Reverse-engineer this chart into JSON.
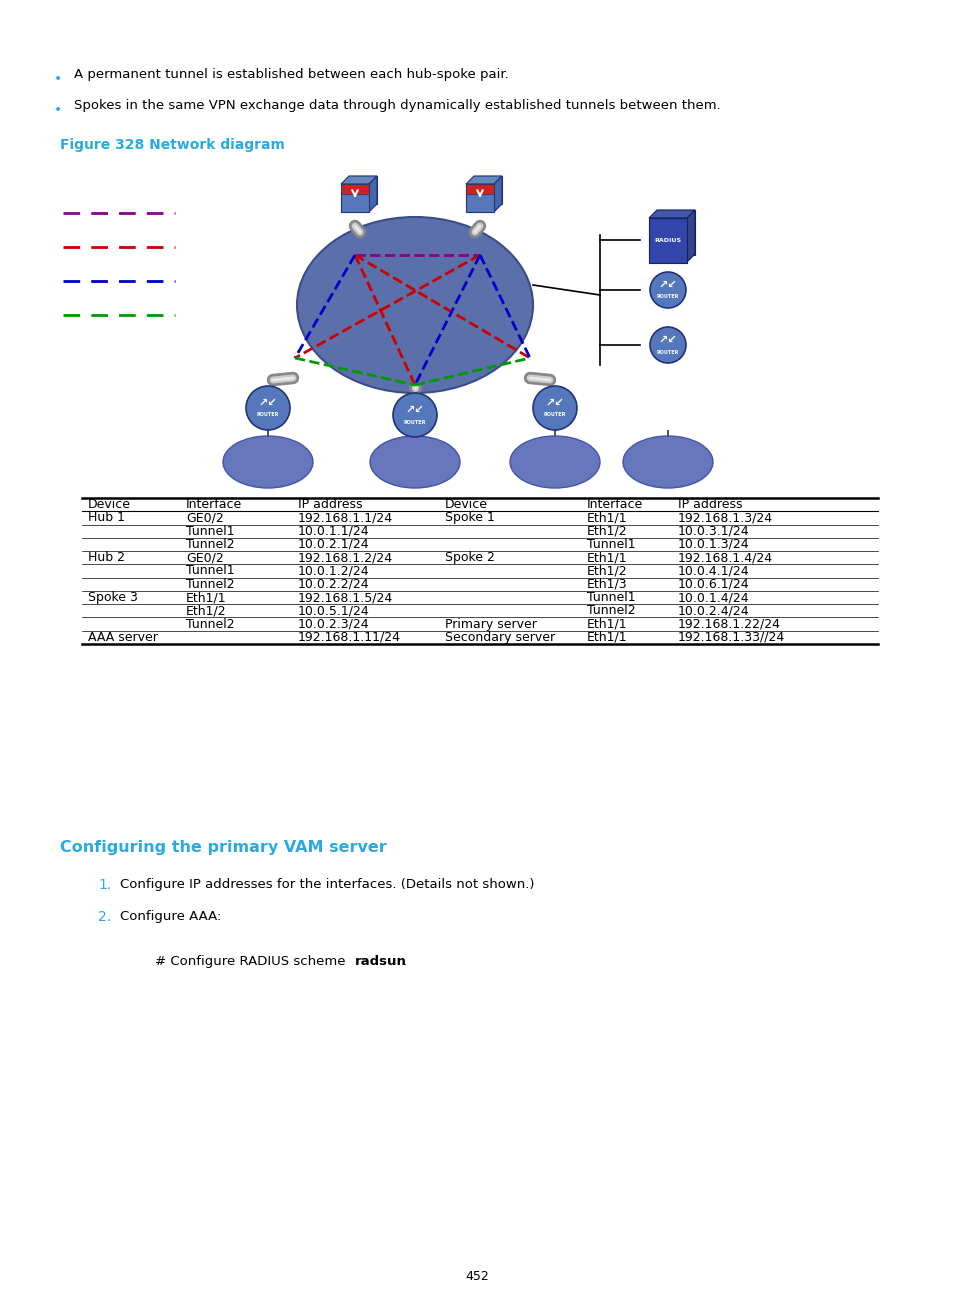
{
  "bg_color": "#ffffff",
  "bullet_color": "#29ABE2",
  "heading_color": "#29ABE2",
  "text_color": "#000000",
  "bullet1": "A permanent tunnel is established between each hub-spoke pair.",
  "bullet2": "Spokes in the same VPN exchange data through dynamically established tunnels between them.",
  "figure_label": "Figure 328 Network diagram",
  "section_title": "Configuring the primary VAM server",
  "step1": "Configure IP addresses for the interfaces. (Details not shown.)",
  "step2": "Configure AAA:",
  "step2_detail": "# Configure RADIUS scheme ",
  "step2_bold": "radsun",
  "step2_end": ".",
  "page_number": "452",
  "legend_colors": [
    "#880088",
    "#CC0000",
    "#0000CC",
    "#009900"
  ],
  "table_header": [
    "Device",
    "Interface",
    "IP address",
    "Device",
    "Interface",
    "IP address"
  ],
  "table_rows": [
    [
      "Hub 1",
      "GE0/2",
      "192.168.1.1/24",
      "Spoke 1",
      "Eth1/1",
      "192.168.1.3/24"
    ],
    [
      "",
      "Tunnel1",
      "10.0.1.1/24",
      "",
      "Eth1/2",
      "10.0.3.1/24"
    ],
    [
      "",
      "Tunnel2",
      "10.0.2.1/24",
      "",
      "Tunnel1",
      "10.0.1.3/24"
    ],
    [
      "Hub 2",
      "GE0/2",
      "192.168.1.2/24",
      "Spoke 2",
      "Eth1/1",
      "192.168.1.4/24"
    ],
    [
      "",
      "Tunnel1",
      "10.0.1.2/24",
      "",
      "Eth1/2",
      "10.0.4.1/24"
    ],
    [
      "",
      "Tunnel2",
      "10.0.2.2/24",
      "",
      "Eth1/3",
      "10.0.6.1/24"
    ],
    [
      "Spoke 3",
      "Eth1/1",
      "192.168.1.5/24",
      "",
      "Tunnel1",
      "10.0.1.4/24"
    ],
    [
      "",
      "Eth1/2",
      "10.0.5.1/24",
      "",
      "Tunnel2",
      "10.0.2.4/24"
    ],
    [
      "",
      "Tunnel2",
      "10.0.2.3/24",
      "Primary server",
      "Eth1/1",
      "192.168.1.22/24"
    ],
    [
      "AAA server",
      "",
      "192.168.1.11/24",
      "Secondary server",
      "Eth1/1",
      "192.168.1.33//24"
    ]
  ]
}
